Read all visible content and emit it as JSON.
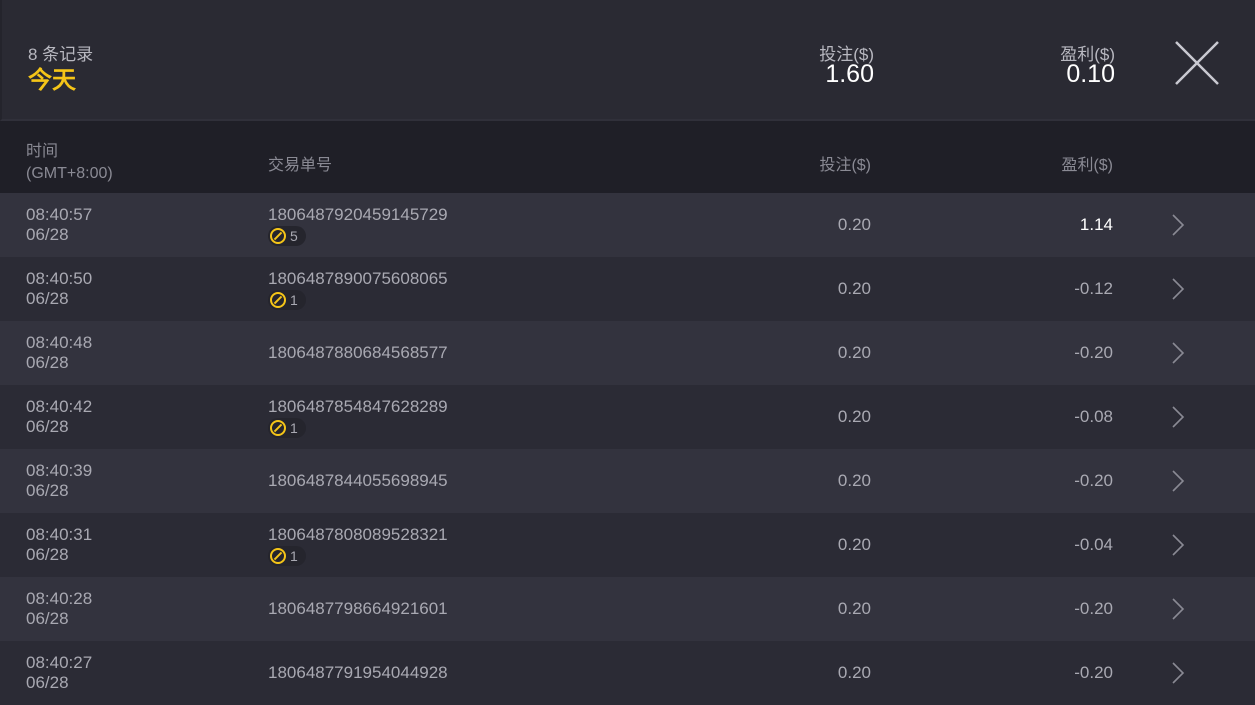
{
  "summary": {
    "count": "8 条记录",
    "period": "今天",
    "bet_label": "投注($)",
    "bet_total": "1.60",
    "profit_label": "盈利($)",
    "profit_total": "0.10"
  },
  "columns": {
    "time": "时间",
    "timezone": "(GMT+8:00)",
    "id": "交易单号",
    "bet": "投注($)",
    "profit": "盈利($)"
  },
  "accent": "#f5c518",
  "rows": [
    {
      "time": "08:40:57",
      "date": "06/28",
      "id": "1806487920459145729",
      "badge": "5",
      "bet": "0.20",
      "profit": "1.14"
    },
    {
      "time": "08:40:50",
      "date": "06/28",
      "id": "1806487890075608065",
      "badge": "1",
      "bet": "0.20",
      "profit": "-0.12"
    },
    {
      "time": "08:40:48",
      "date": "06/28",
      "id": "1806487880684568577",
      "badge": null,
      "bet": "0.20",
      "profit": "-0.20"
    },
    {
      "time": "08:40:42",
      "date": "06/28",
      "id": "1806487854847628289",
      "badge": "1",
      "bet": "0.20",
      "profit": "-0.08"
    },
    {
      "time": "08:40:39",
      "date": "06/28",
      "id": "1806487844055698945",
      "badge": null,
      "bet": "0.20",
      "profit": "-0.20"
    },
    {
      "time": "08:40:31",
      "date": "06/28",
      "id": "1806487808089528321",
      "badge": "1",
      "bet": "0.20",
      "profit": "-0.04"
    },
    {
      "time": "08:40:28",
      "date": "06/28",
      "id": "1806487798664921601",
      "badge": null,
      "bet": "0.20",
      "profit": "-0.20"
    },
    {
      "time": "08:40:27",
      "date": "06/28",
      "id": "1806487791954044928",
      "badge": null,
      "bet": "0.20",
      "profit": "-0.20"
    }
  ]
}
